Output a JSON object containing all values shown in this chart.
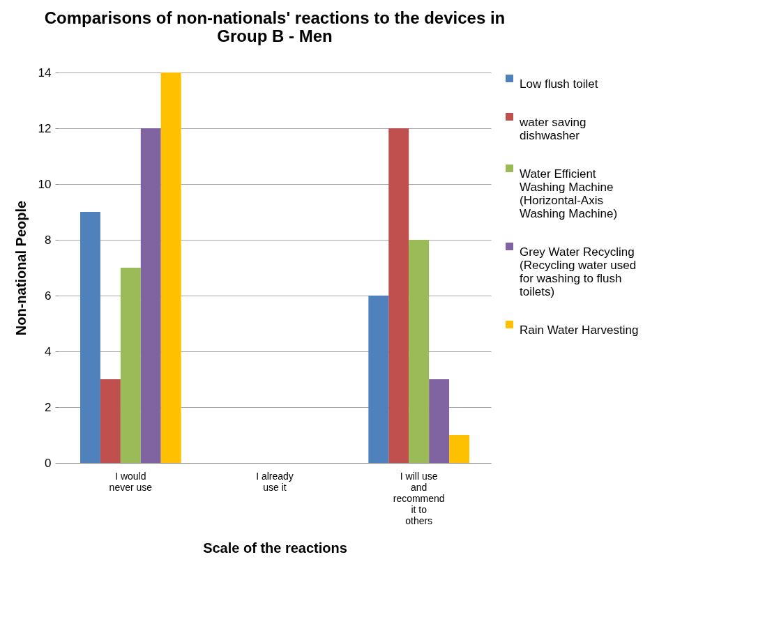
{
  "chart_data": {
    "type": "bar",
    "title": "Comparisons of non-nationals' reactions to the devices in Group B - Men",
    "xlabel": "Scale of the reactions",
    "ylabel": "Non-national People",
    "categories": [
      "I would never use",
      "I already use it",
      "I will use and recommend it to others"
    ],
    "series": [
      {
        "name": "Low flush toilet",
        "color": "#4f81bd",
        "values": [
          9,
          0,
          6
        ]
      },
      {
        "name": "water saving dishwasher",
        "color": "#c0504d",
        "values": [
          3,
          0,
          12
        ]
      },
      {
        "name": "Water Efficient Washing Machine (Horizontal-Axis Washing Machine)",
        "color": "#9bbb59",
        "values": [
          7,
          0,
          8
        ]
      },
      {
        "name": "Grey Water Recycling (Recycling water used for washing to flush toilets)",
        "color": "#8064a2",
        "values": [
          12,
          0,
          3
        ]
      },
      {
        "name": "Rain Water Harvesting",
        "color": "#ffc000",
        "values": [
          14,
          0,
          1
        ]
      }
    ],
    "ylim": [
      0,
      14
    ],
    "yticks": [
      0,
      2,
      4,
      6,
      8,
      10,
      12,
      14
    ],
    "grid": "y",
    "legend": "right"
  }
}
